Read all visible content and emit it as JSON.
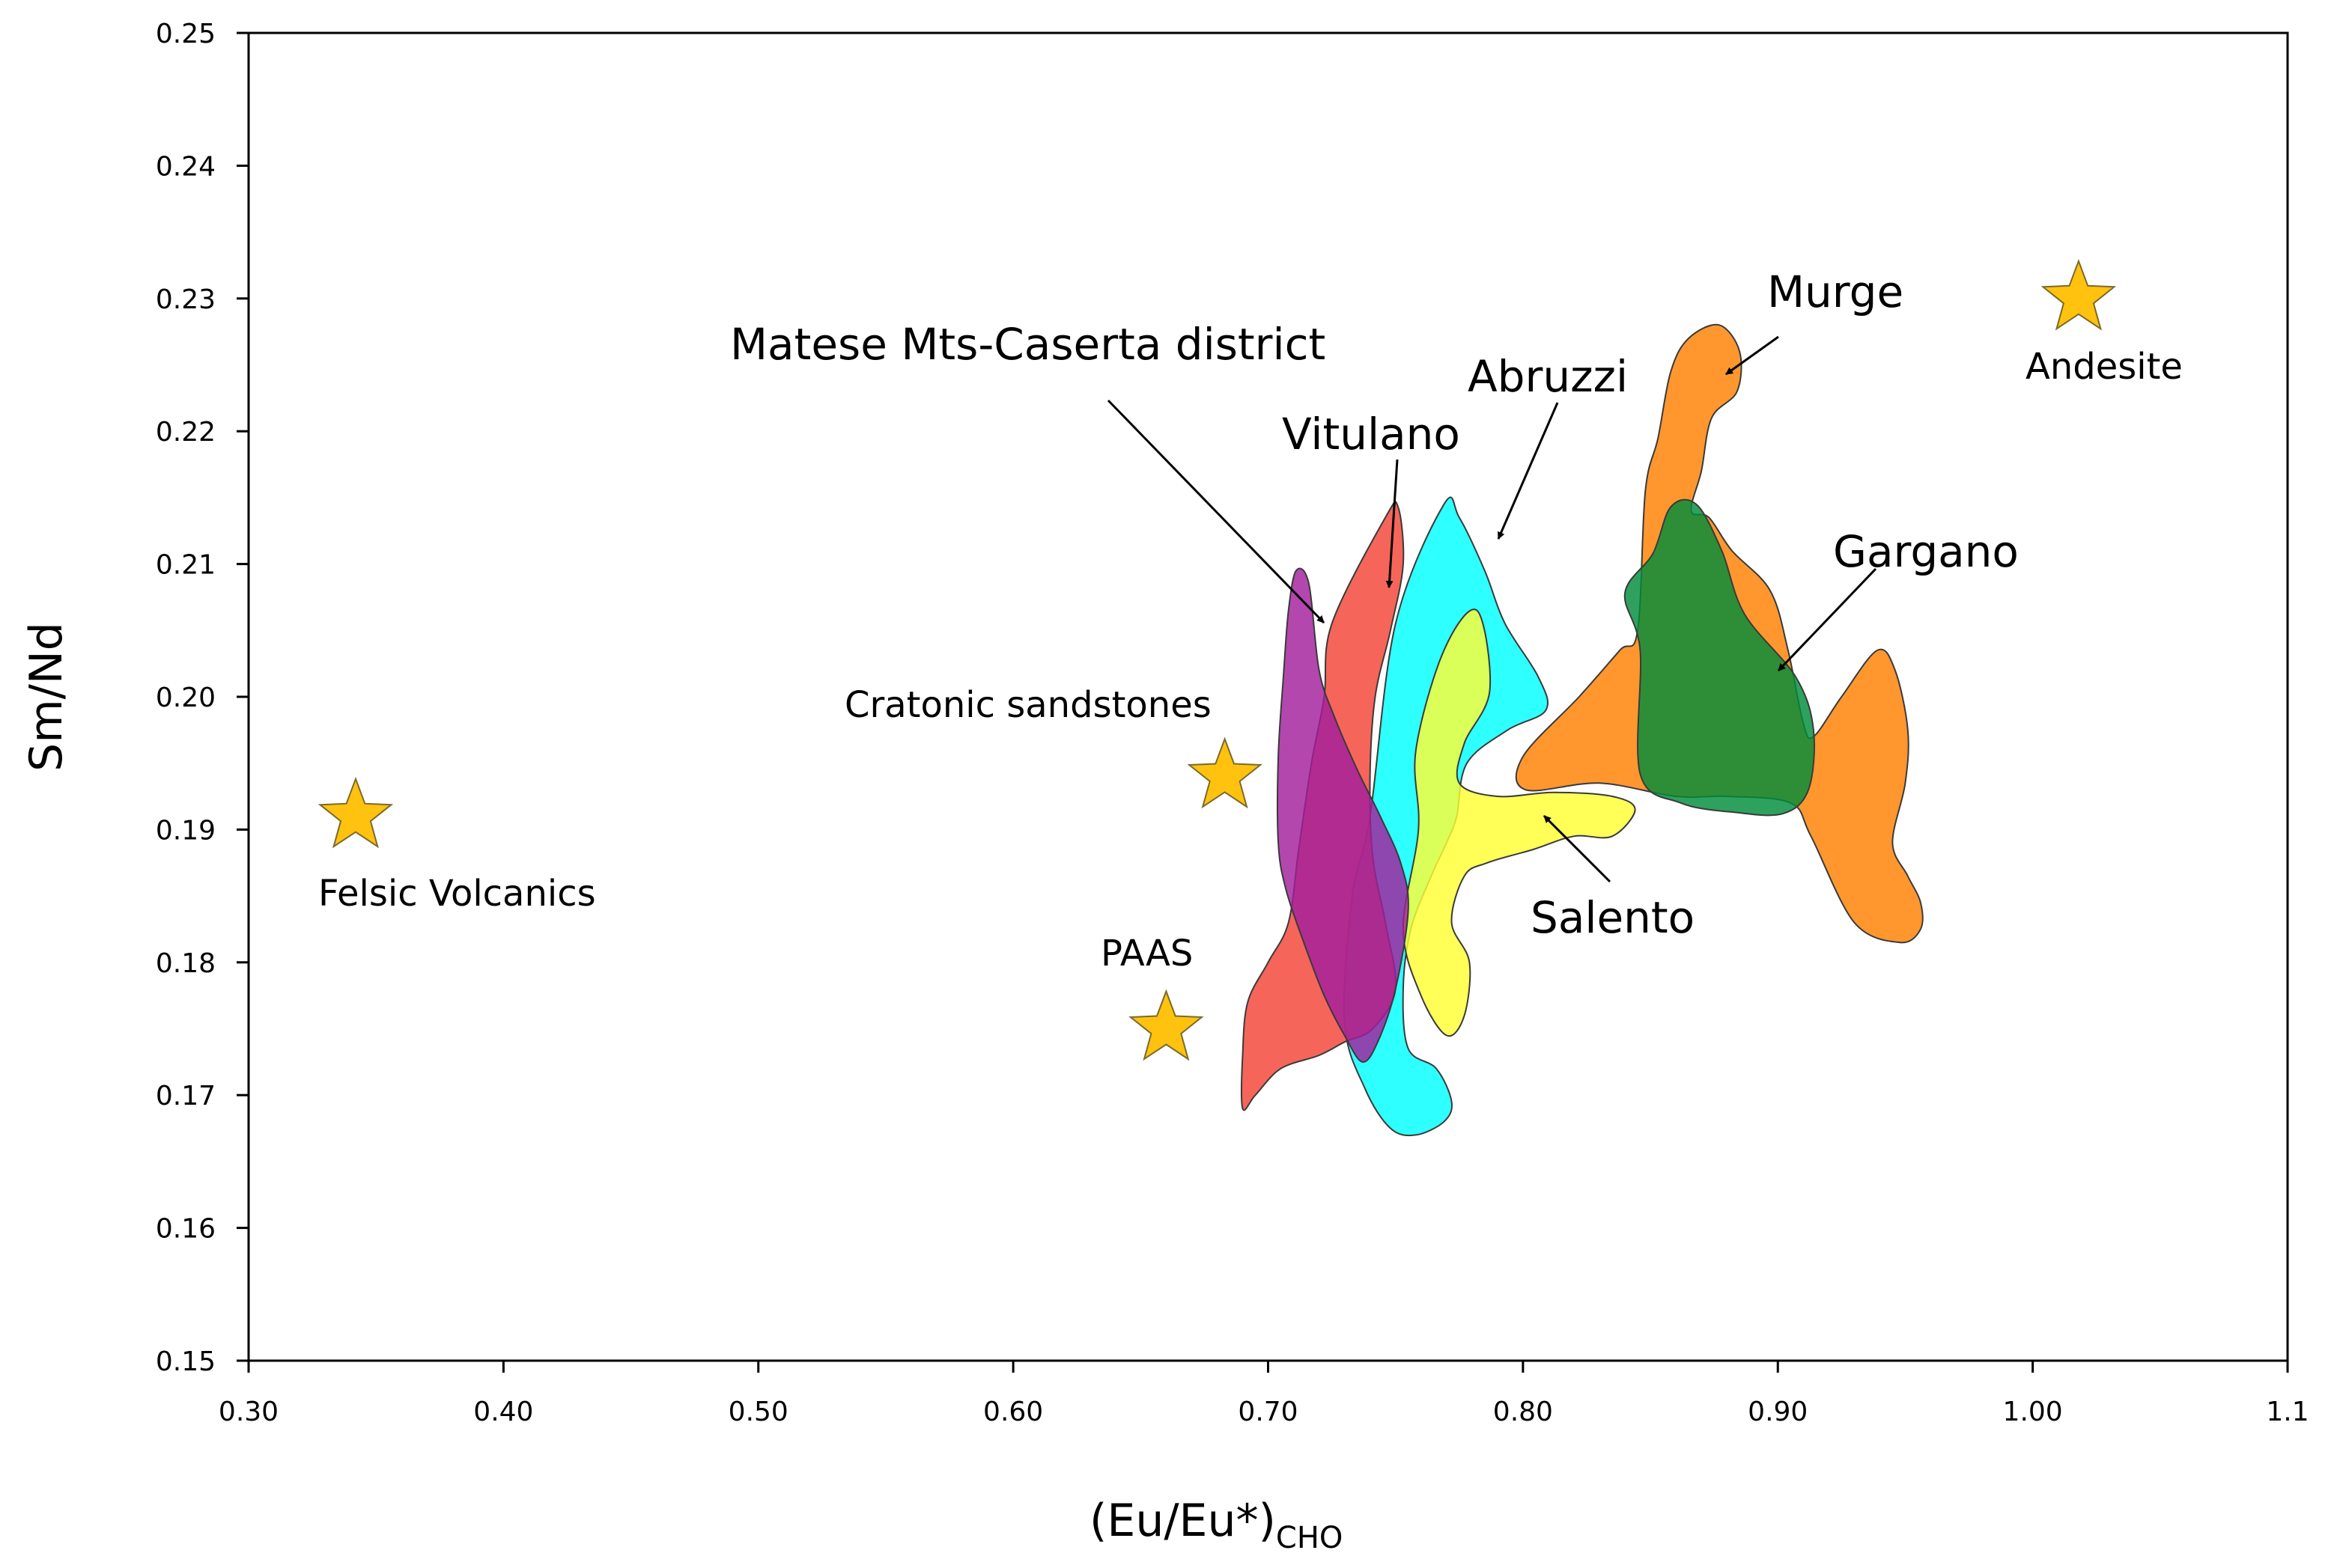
{
  "chart_data": {
    "type": "scatter",
    "title": "",
    "xlabel": "(Eu/Eu*)",
    "xlabel_subscript": "CHO",
    "ylabel": "Sm/Nd",
    "xlim": [
      0.3,
      1.1
    ],
    "ylim": [
      0.15,
      0.25
    ],
    "x_ticks": [
      0.3,
      0.4,
      0.5,
      0.6,
      0.7,
      0.8,
      0.9,
      1.0,
      1.1
    ],
    "x_tick_labels": [
      "0.30",
      "0.40",
      "0.50",
      "0.60",
      "0.70",
      "0.80",
      "0.90",
      "1.00",
      "1.1"
    ],
    "y_ticks": [
      0.15,
      0.16,
      0.17,
      0.18,
      0.19,
      0.2,
      0.21,
      0.22,
      0.23,
      0.24,
      0.25
    ],
    "y_tick_labels": [
      "0.15",
      "0.16",
      "0.17",
      "0.18",
      "0.19",
      "0.20",
      "0.21",
      "0.22",
      "0.23",
      "0.24",
      "0.25"
    ],
    "grid": false,
    "reference_points": [
      {
        "name": "Felsic Volcanics",
        "x": 0.342,
        "y": 0.191,
        "color": "#FFC20E"
      },
      {
        "name": "Cratonic sandstones",
        "x": 0.683,
        "y": 0.194,
        "color": "#FFC20E"
      },
      {
        "name": "PAAS",
        "x": 0.66,
        "y": 0.175,
        "color": "#FFC20E"
      },
      {
        "name": "Andesite",
        "x": 1.018,
        "y": 0.23,
        "color": "#FFC20E"
      }
    ],
    "regions": [
      {
        "name": "Murge",
        "color": "#FF8000",
        "outline": [
          [
            0.865,
            0.227
          ],
          [
            0.877,
            0.228
          ],
          [
            0.885,
            0.226
          ],
          [
            0.884,
            0.223
          ],
          [
            0.874,
            0.221
          ],
          [
            0.87,
            0.217
          ],
          [
            0.866,
            0.214
          ],
          [
            0.873,
            0.2135
          ],
          [
            0.882,
            0.211
          ],
          [
            0.897,
            0.208
          ],
          [
            0.904,
            0.2035
          ],
          [
            0.91,
            0.198
          ],
          [
            0.914,
            0.197
          ],
          [
            0.925,
            0.2
          ],
          [
            0.939,
            0.2035
          ],
          [
            0.946,
            0.202
          ],
          [
            0.951,
            0.1975
          ],
          [
            0.95,
            0.1935
          ],
          [
            0.945,
            0.189
          ],
          [
            0.951,
            0.1865
          ],
          [
            0.956,
            0.1845
          ],
          [
            0.956,
            0.1825
          ],
          [
            0.948,
            0.1815
          ],
          [
            0.93,
            0.183
          ],
          [
            0.913,
            0.1895
          ],
          [
            0.905,
            0.192
          ],
          [
            0.88,
            0.1925
          ],
          [
            0.86,
            0.1925
          ],
          [
            0.83,
            0.1935
          ],
          [
            0.801,
            0.193
          ],
          [
            0.8,
            0.1955
          ],
          [
            0.822,
            0.2
          ],
          [
            0.838,
            0.2035
          ],
          [
            0.845,
            0.205
          ],
          [
            0.848,
            0.2155
          ],
          [
            0.853,
            0.2195
          ],
          [
            0.858,
            0.2245
          ]
        ]
      },
      {
        "name": "Gargano",
        "color": "#008C3A",
        "outline": [
          [
            0.851,
            0.2108
          ],
          [
            0.858,
            0.2143
          ],
          [
            0.868,
            0.2145
          ],
          [
            0.878,
            0.211
          ],
          [
            0.887,
            0.2062
          ],
          [
            0.907,
            0.2015
          ],
          [
            0.914,
            0.1975
          ],
          [
            0.912,
            0.193
          ],
          [
            0.902,
            0.1912
          ],
          [
            0.883,
            0.1913
          ],
          [
            0.862,
            0.192
          ],
          [
            0.846,
            0.1942
          ],
          [
            0.846,
            0.2035
          ],
          [
            0.84,
            0.2078
          ]
        ]
      },
      {
        "name": "Abruzzi",
        "color": "#00FFFF",
        "outline": [
          [
            0.769,
            0.2145
          ],
          [
            0.775,
            0.2135
          ],
          [
            0.785,
            0.2095
          ],
          [
            0.793,
            0.2055
          ],
          [
            0.806,
            0.2015
          ],
          [
            0.809,
            0.199
          ],
          [
            0.794,
            0.1975
          ],
          [
            0.778,
            0.195
          ],
          [
            0.774,
            0.191
          ],
          [
            0.77,
            0.189
          ],
          [
            0.764,
            0.1865
          ],
          [
            0.756,
            0.1825
          ],
          [
            0.753,
            0.178
          ],
          [
            0.755,
            0.1735
          ],
          [
            0.766,
            0.172
          ],
          [
            0.772,
            0.1695
          ],
          [
            0.769,
            0.168
          ],
          [
            0.758,
            0.167
          ],
          [
            0.748,
            0.1675
          ],
          [
            0.738,
            0.1705
          ],
          [
            0.73,
            0.1755
          ],
          [
            0.733,
            0.185
          ],
          [
            0.74,
            0.191
          ],
          [
            0.75,
            0.2055
          ]
        ]
      },
      {
        "name": "Salento",
        "color": "#FFFF33",
        "outline": [
          [
            0.782,
            0.2065
          ],
          [
            0.787,
            0.2005
          ],
          [
            0.777,
            0.1965
          ],
          [
            0.775,
            0.1935
          ],
          [
            0.79,
            0.1925
          ],
          [
            0.812,
            0.1928
          ],
          [
            0.835,
            0.1925
          ],
          [
            0.844,
            0.1915
          ],
          [
            0.835,
            0.1895
          ],
          [
            0.82,
            0.1895
          ],
          [
            0.804,
            0.1885
          ],
          [
            0.786,
            0.1875
          ],
          [
            0.777,
            0.1865
          ],
          [
            0.772,
            0.183
          ],
          [
            0.779,
            0.18
          ],
          [
            0.777,
            0.176
          ],
          [
            0.77,
            0.1745
          ],
          [
            0.76,
            0.1775
          ],
          [
            0.753,
            0.1825
          ],
          [
            0.759,
            0.19
          ],
          [
            0.758,
            0.196
          ],
          [
            0.769,
            0.2035
          ]
        ]
      },
      {
        "name": "Vitulano",
        "color": "#F44336",
        "outline": [
          [
            0.746,
            0.2135
          ],
          [
            0.751,
            0.2143
          ],
          [
            0.753,
            0.21
          ],
          [
            0.748,
            0.205
          ],
          [
            0.742,
            0.2
          ],
          [
            0.74,
            0.194
          ],
          [
            0.741,
            0.188
          ],
          [
            0.746,
            0.183
          ],
          [
            0.75,
            0.178
          ],
          [
            0.741,
            0.175
          ],
          [
            0.73,
            0.174
          ],
          [
            0.72,
            0.173
          ],
          [
            0.705,
            0.172
          ],
          [
            0.695,
            0.17
          ],
          [
            0.69,
            0.169
          ],
          [
            0.69,
            0.173
          ],
          [
            0.692,
            0.177
          ],
          [
            0.7,
            0.18
          ],
          [
            0.708,
            0.183
          ],
          [
            0.712,
            0.1885
          ],
          [
            0.717,
            0.195
          ],
          [
            0.722,
            0.2
          ],
          [
            0.725,
            0.2055
          ]
        ]
      },
      {
        "name": "Matese Mts-Caserta district",
        "color": "#A21F9C",
        "outline": [
          [
            0.711,
            0.2095
          ],
          [
            0.716,
            0.2085
          ],
          [
            0.72,
            0.202
          ],
          [
            0.726,
            0.1985
          ],
          [
            0.735,
            0.1945
          ],
          [
            0.744,
            0.191
          ],
          [
            0.752,
            0.1875
          ],
          [
            0.755,
            0.184
          ],
          [
            0.75,
            0.178
          ],
          [
            0.743,
            0.174
          ],
          [
            0.737,
            0.1725
          ],
          [
            0.73,
            0.1745
          ],
          [
            0.722,
            0.1775
          ],
          [
            0.714,
            0.1815
          ],
          [
            0.707,
            0.1855
          ],
          [
            0.704,
            0.189
          ],
          [
            0.704,
            0.1955
          ],
          [
            0.706,
            0.2015
          ],
          [
            0.708,
            0.2065
          ]
        ]
      }
    ],
    "annotations": [
      {
        "text": "Murge",
        "arrow_to": "Murge"
      },
      {
        "text": "Gargano",
        "arrow_to": "Gargano"
      },
      {
        "text": "Abruzzi",
        "arrow_to": "Abruzzi"
      },
      {
        "text": "Vitulano",
        "arrow_to": "Vitulano"
      },
      {
        "text": "Matese Mts-Caserta district",
        "arrow_to": "Matese Mts-Caserta district"
      },
      {
        "text": "Salento",
        "arrow_to": "Salento"
      }
    ]
  }
}
